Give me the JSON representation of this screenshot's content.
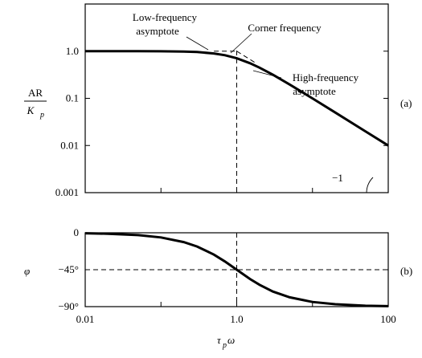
{
  "chart_data": [
    {
      "type": "line",
      "panel_label": "(a)",
      "ylabel": {
        "numerator": "AR",
        "denominator": "K",
        "denominator_sub": "p"
      },
      "xscale": "log",
      "yscale": "log",
      "xlim": [
        0.01,
        100
      ],
      "ylim": [
        0.001,
        10
      ],
      "y_ticks": [
        {
          "value": 1,
          "label": "1.0"
        },
        {
          "value": 0.1,
          "label": "0.1"
        },
        {
          "value": 0.01,
          "label": "0.01"
        },
        {
          "value": 0.001,
          "label": "0.001"
        }
      ],
      "x_ticks": [
        0.01,
        0.1,
        1,
        10,
        100
      ],
      "series": [
        {
          "x": [
            0.01,
            0.05,
            0.1,
            0.2,
            0.3,
            0.5,
            0.7,
            1.0,
            1.5,
            2,
            3,
            5,
            7,
            10,
            20,
            50,
            100
          ],
          "values": [
            1.0,
            0.999,
            0.995,
            0.981,
            0.958,
            0.894,
            0.819,
            0.707,
            0.555,
            0.447,
            0.316,
            0.196,
            0.141,
            0.0995,
            0.05,
            0.02,
            0.01
          ]
        }
      ],
      "asymptotes": {
        "low": {
          "x": [
            0.5,
            1.0
          ],
          "y": [
            1.0,
            1.0
          ]
        },
        "high": {
          "x": [
            1.0,
            1.75
          ],
          "y": [
            1.0,
            0.571
          ]
        }
      },
      "corner_line_x": 1.0,
      "annotations": [
        {
          "text_lines": [
            "Low-frequency",
            "asymptote"
          ]
        },
        {
          "text_lines": [
            "Corner frequency"
          ]
        },
        {
          "text_lines": [
            "High-frequency",
            "asymptote"
          ]
        },
        {
          "text_lines": [
            "−1"
          ]
        }
      ],
      "grid": false
    },
    {
      "type": "line",
      "panel_label": "(b)",
      "ylabel": "φ",
      "xlabel": {
        "main": "τ",
        "sub": "p",
        "after": " ω"
      },
      "xscale": "log",
      "xlim": [
        0.01,
        100
      ],
      "ylim": [
        -90,
        0
      ],
      "y_ticks": [
        {
          "value": 0,
          "label": "0"
        },
        {
          "value": -45,
          "label": "−45°"
        },
        {
          "value": -90,
          "label": "−90°"
        }
      ],
      "x_ticks": [
        {
          "value": 0.01,
          "label": "0.01"
        },
        {
          "value": 0.1,
          "label": ""
        },
        {
          "value": 1,
          "label": "1.0"
        },
        {
          "value": 10,
          "label": ""
        },
        {
          "value": 100,
          "label": "100"
        }
      ],
      "series": [
        {
          "x": [
            0.01,
            0.02,
            0.05,
            0.1,
            0.2,
            0.3,
            0.5,
            0.7,
            1.0,
            1.5,
            2,
            3,
            5,
            10,
            20,
            50,
            100
          ],
          "values": [
            -0.57,
            -1.15,
            -2.86,
            -5.71,
            -11.3,
            -16.7,
            -26.6,
            -35.0,
            -45.0,
            -56.3,
            -63.4,
            -71.6,
            -78.7,
            -84.3,
            -87.1,
            -88.9,
            -89.4
          ]
        }
      ],
      "reference_lines": {
        "x": 1.0,
        "y": -45
      },
      "grid": false
    }
  ]
}
